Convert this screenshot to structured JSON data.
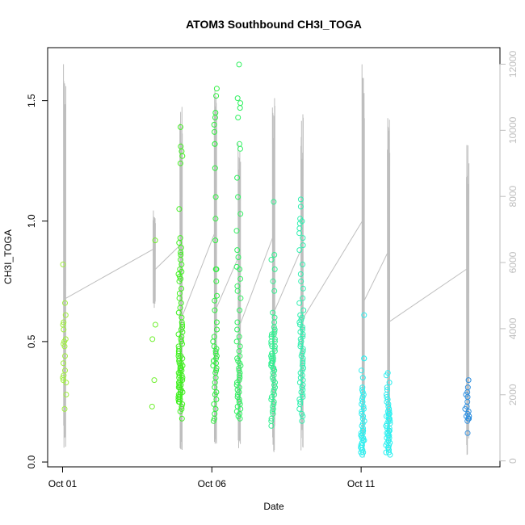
{
  "chart_data": {
    "type": "scatter",
    "title": "ATOM3 Southbound CH3I_TOGA",
    "xlabel": "Date",
    "ylabel": "CH3I_TOGA",
    "x_ticks": [
      {
        "label": "Oct 01",
        "value": 0
      },
      {
        "label": "Oct 06",
        "value": 5
      },
      {
        "label": "Oct 11",
        "value": 10
      }
    ],
    "xlim": [
      -0.5,
      14.65
    ],
    "ylim": [
      -0.02,
      1.72
    ],
    "y_ticks": [
      0.0,
      0.5,
      1.0,
      1.5
    ],
    "y2_ticks": [
      0,
      2000,
      4000,
      6000,
      8000,
      10000,
      12000
    ],
    "y2lim": [
      -180,
      12500
    ],
    "grid": false,
    "line_color": "#bebebe",
    "flights": [
      {
        "date_offset": 0.05,
        "color": "#a0f040",
        "points": [
          0.82,
          0.66,
          0.61,
          0.58,
          0.57,
          0.55,
          0.51,
          0.5,
          0.49,
          0.48,
          0.44,
          0.41,
          0.38,
          0.36,
          0.35,
          0.34,
          0.33,
          0.28,
          0.22
        ]
      },
      {
        "date_offset": 3.05,
        "color": "#70f030",
        "points": [
          0.92,
          0.57,
          0.51,
          0.34,
          0.23
        ]
      },
      {
        "date_offset": 3.95,
        "color": "#40f020",
        "points": [
          1.39,
          1.31,
          1.29,
          1.27,
          1.24,
          1.05,
          0.93,
          0.91,
          0.89,
          0.87,
          0.86,
          0.84,
          0.82,
          0.8,
          0.79,
          0.78,
          0.77,
          0.76,
          0.75,
          0.72,
          0.7,
          0.68,
          0.66,
          0.64,
          0.62,
          0.6,
          0.58,
          0.57,
          0.56,
          0.55,
          0.54,
          0.53,
          0.52,
          0.51,
          0.5,
          0.49,
          0.48,
          0.47,
          0.46,
          0.46,
          0.45,
          0.44,
          0.44,
          0.43,
          0.43,
          0.42,
          0.42,
          0.41,
          0.41,
          0.4,
          0.4,
          0.39,
          0.39,
          0.38,
          0.38,
          0.37,
          0.37,
          0.36,
          0.36,
          0.35,
          0.35,
          0.34,
          0.34,
          0.33,
          0.33,
          0.32,
          0.32,
          0.31,
          0.31,
          0.3,
          0.3,
          0.29,
          0.29,
          0.28,
          0.28,
          0.27,
          0.27,
          0.26,
          0.26,
          0.25,
          0.25,
          0.24,
          0.23,
          0.22,
          0.21,
          0.18
        ]
      },
      {
        "date_offset": 5.1,
        "color": "#30f040",
        "points": [
          1.55,
          1.52,
          1.45,
          1.43,
          1.4,
          1.37,
          1.32,
          1.32,
          1.22,
          1.1,
          1.01,
          0.92,
          0.8,
          0.8,
          0.75,
          0.69,
          0.67,
          0.63,
          0.58,
          0.55,
          0.52,
          0.5,
          0.48,
          0.47,
          0.46,
          0.45,
          0.44,
          0.43,
          0.42,
          0.42,
          0.41,
          0.4,
          0.39,
          0.38,
          0.37,
          0.35,
          0.33,
          0.31,
          0.29,
          0.28,
          0.26,
          0.24,
          0.22,
          0.2,
          0.18,
          0.17
        ]
      },
      {
        "date_offset": 5.9,
        "color": "#30f060",
        "points": [
          1.65,
          1.51,
          1.49,
          1.47,
          1.43,
          1.32,
          1.3,
          1.18,
          1.1,
          1.03,
          0.96,
          0.88,
          0.85,
          0.81,
          0.8,
          0.76,
          0.73,
          0.71,
          0.68,
          0.63,
          0.58,
          0.55,
          0.52,
          0.5,
          0.48,
          0.46,
          0.44,
          0.43,
          0.42,
          0.41,
          0.4,
          0.39,
          0.38,
          0.37,
          0.36,
          0.35,
          0.34,
          0.33,
          0.32,
          0.31,
          0.3,
          0.29,
          0.28,
          0.27,
          0.26,
          0.25,
          0.24,
          0.23,
          0.22,
          0.21,
          0.2,
          0.19,
          0.18
        ]
      },
      {
        "date_offset": 7.05,
        "color": "#30f090",
        "points": [
          1.08,
          0.86,
          0.84,
          0.8,
          0.75,
          0.71,
          0.62,
          0.6,
          0.58,
          0.56,
          0.55,
          0.54,
          0.53,
          0.53,
          0.52,
          0.52,
          0.51,
          0.5,
          0.5,
          0.49,
          0.48,
          0.48,
          0.47,
          0.46,
          0.45,
          0.45,
          0.44,
          0.44,
          0.43,
          0.43,
          0.42,
          0.42,
          0.41,
          0.41,
          0.4,
          0.4,
          0.39,
          0.39,
          0.38,
          0.38,
          0.37,
          0.36,
          0.35,
          0.34,
          0.33,
          0.32,
          0.31,
          0.3,
          0.29,
          0.28,
          0.27,
          0.26,
          0.25,
          0.24,
          0.23,
          0.22,
          0.21,
          0.2,
          0.18,
          0.17,
          0.15
        ]
      },
      {
        "date_offset": 8.0,
        "color": "#30f0b0",
        "points": [
          1.09,
          1.06,
          1.01,
          1.0,
          0.99,
          0.97,
          0.95,
          0.93,
          0.9,
          0.88,
          0.82,
          0.78,
          0.75,
          0.72,
          0.68,
          0.66,
          0.63,
          0.61,
          0.6,
          0.59,
          0.58,
          0.57,
          0.56,
          0.55,
          0.54,
          0.53,
          0.52,
          0.51,
          0.5,
          0.49,
          0.48,
          0.47,
          0.46,
          0.45,
          0.44,
          0.43,
          0.42,
          0.41,
          0.4,
          0.39,
          0.38,
          0.37,
          0.36,
          0.35,
          0.34,
          0.33,
          0.32,
          0.31,
          0.3,
          0.29,
          0.28,
          0.27,
          0.26,
          0.25,
          0.24,
          0.22,
          0.2,
          0.19,
          0.17
        ]
      },
      {
        "date_offset": 10.05,
        "color": "#30f0f0",
        "points": [
          0.61,
          0.43,
          0.43,
          0.38,
          0.35,
          0.31,
          0.3,
          0.29,
          0.28,
          0.27,
          0.26,
          0.25,
          0.24,
          0.23,
          0.22,
          0.21,
          0.2,
          0.19,
          0.18,
          0.17,
          0.16,
          0.15,
          0.14,
          0.13,
          0.13,
          0.12,
          0.12,
          0.11,
          0.11,
          0.1,
          0.1,
          0.09,
          0.09,
          0.08,
          0.08,
          0.07,
          0.07,
          0.06,
          0.06,
          0.05,
          0.05,
          0.04,
          0.04,
          0.03
        ]
      },
      {
        "date_offset": 10.9,
        "color": "#30f0f0",
        "points": [
          0.37,
          0.36,
          0.33,
          0.31,
          0.3,
          0.28,
          0.27,
          0.26,
          0.25,
          0.24,
          0.23,
          0.22,
          0.21,
          0.21,
          0.2,
          0.2,
          0.19,
          0.19,
          0.18,
          0.18,
          0.17,
          0.17,
          0.16,
          0.16,
          0.15,
          0.15,
          0.14,
          0.14,
          0.13,
          0.13,
          0.12,
          0.12,
          0.11,
          0.11,
          0.1,
          0.1,
          0.09,
          0.09,
          0.08,
          0.08,
          0.07,
          0.07,
          0.06,
          0.06,
          0.05,
          0.05,
          0.04,
          0.04,
          0.03
        ]
      },
      {
        "date_offset": 13.55,
        "color": "#3090e0",
        "points": [
          0.34,
          0.31,
          0.29,
          0.28,
          0.27,
          0.25,
          0.23,
          0.22,
          0.21,
          0.2,
          0.19,
          0.19,
          0.18,
          0.18,
          0.17,
          0.12
        ]
      }
    ],
    "altitude_profiles": [
      {
        "x": 0.05,
        "max": 12000,
        "min": 200
      },
      {
        "x": 3.05,
        "max": 7600,
        "min": 4600
      },
      {
        "x": 3.95,
        "max": 10800,
        "min": 100
      },
      {
        "x": 5.1,
        "max": 11300,
        "min": 200
      },
      {
        "x": 5.9,
        "max": 10100,
        "min": 200
      },
      {
        "x": 7.05,
        "max": 11100,
        "min": 200
      },
      {
        "x": 8.0,
        "max": 10500,
        "min": 200
      },
      {
        "x": 10.05,
        "max": 12000,
        "min": 100
      },
      {
        "x": 10.9,
        "max": 10400,
        "min": 100
      },
      {
        "x": 13.55,
        "max": 9600,
        "min": 100
      }
    ]
  }
}
